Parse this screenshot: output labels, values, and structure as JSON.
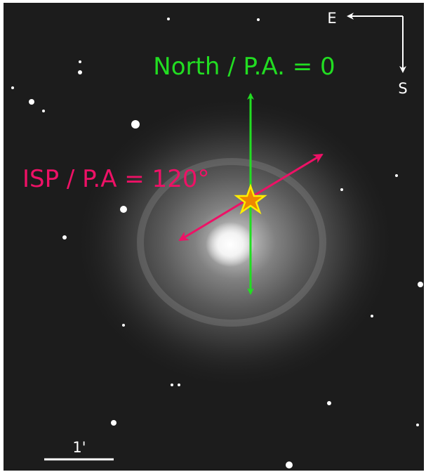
{
  "compass": {
    "east": "E",
    "south": "S"
  },
  "annotations": {
    "north": "North / P.A. = 0",
    "isp": "ISP / P.A = 120°"
  },
  "scale_bar": {
    "label": "1'"
  }
}
